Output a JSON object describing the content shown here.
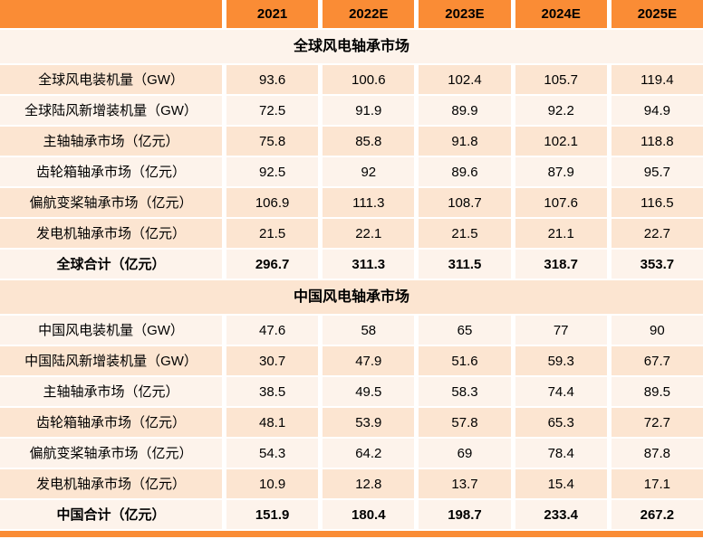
{
  "colors": {
    "header_orange": "#FA8C35",
    "row_peach": "#FCE5D1",
    "row_light": "#FDF3EB",
    "text": "#000000"
  },
  "chart_data": {
    "type": "table",
    "columns": [
      "",
      "2021",
      "2022E",
      "2023E",
      "2024E",
      "2025E"
    ],
    "sections": [
      {
        "title": "全球风电轴承市场",
        "rows": [
          {
            "label": "全球风电装机量（GW）",
            "values": [
              "93.6",
              "100.6",
              "102.4",
              "105.7",
              "119.4"
            ]
          },
          {
            "label": "全球陆风新增装机量（GW）",
            "values": [
              "72.5",
              "91.9",
              "89.9",
              "92.2",
              "94.9"
            ]
          },
          {
            "label": "主轴轴承市场（亿元）",
            "values": [
              "75.8",
              "85.8",
              "91.8",
              "102.1",
              "118.8"
            ]
          },
          {
            "label": "齿轮箱轴承市场（亿元）",
            "values": [
              "92.5",
              "92",
              "89.6",
              "87.9",
              "95.7"
            ]
          },
          {
            "label": "偏航变桨轴承市场（亿元）",
            "values": [
              "106.9",
              "111.3",
              "108.7",
              "107.6",
              "116.5"
            ]
          },
          {
            "label": "发电机轴承市场（亿元）",
            "values": [
              "21.5",
              "22.1",
              "21.5",
              "21.1",
              "22.7"
            ]
          }
        ],
        "total": {
          "label": "全球合计（亿元）",
          "values": [
            "296.7",
            "311.3",
            "311.5",
            "318.7",
            "353.7"
          ]
        }
      },
      {
        "title": "中国风电轴承市场",
        "rows": [
          {
            "label": "中国风电装机量（GW）",
            "values": [
              "47.6",
              "58",
              "65",
              "77",
              "90"
            ]
          },
          {
            "label": "中国陆风新增装机量（GW）",
            "values": [
              "30.7",
              "47.9",
              "51.6",
              "59.3",
              "67.7"
            ]
          },
          {
            "label": "主轴轴承市场（亿元）",
            "values": [
              "38.5",
              "49.5",
              "58.3",
              "74.4",
              "89.5"
            ]
          },
          {
            "label": "齿轮箱轴承市场（亿元）",
            "values": [
              "48.1",
              "53.9",
              "57.8",
              "65.3",
              "72.7"
            ]
          },
          {
            "label": "偏航变桨轴承市场（亿元）",
            "values": [
              "54.3",
              "64.2",
              "69",
              "78.4",
              "87.8"
            ]
          },
          {
            "label": "发电机轴承市场（亿元）",
            "values": [
              "10.9",
              "12.8",
              "13.7",
              "15.4",
              "17.1"
            ]
          }
        ],
        "total": {
          "label": "中国合计（亿元）",
          "values": [
            "151.9",
            "180.4",
            "198.7",
            "233.4",
            "267.2"
          ]
        }
      }
    ]
  }
}
